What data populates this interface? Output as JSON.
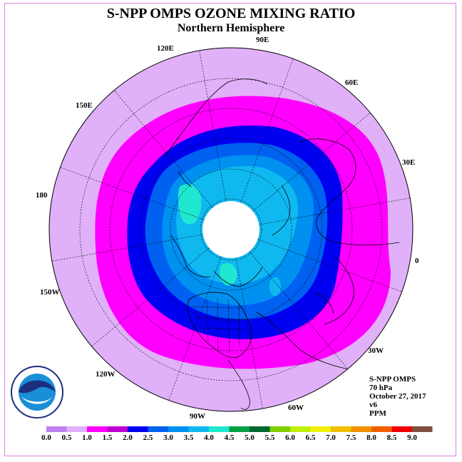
{
  "title": "S-NPP OMPS OZONE MIXING RATIO",
  "subtitle": "Northern Hemisphere",
  "longitude_labels": [
    "120E",
    "90E",
    "60E",
    "150E",
    "30E",
    "180",
    "0",
    "150W",
    "30W",
    "120W",
    "60W",
    "90W"
  ],
  "info": {
    "instrument": "S-NPP OMPS",
    "level": "70 hPa",
    "date": "October 27, 2017",
    "version": "v6",
    "unit": "PPM"
  },
  "colorbar": {
    "ticks": [
      "0.0",
      "0.5",
      "1.0",
      "1.5",
      "2.0",
      "2.5",
      "3.0",
      "3.5",
      "4.0",
      "4.5",
      "5.0",
      "5.5",
      "6.0",
      "6.5",
      "7.0",
      "7.5",
      "8.0",
      "8.5",
      "9.0"
    ],
    "colors": [
      "#c080f0",
      "#e0b0f8",
      "#ff00ff",
      "#c000d0",
      "#0000f0",
      "#0060f0",
      "#0090f0",
      "#10b8f0",
      "#20e8d0",
      "#00a040",
      "#006830",
      "#80d000",
      "#c0f000",
      "#f0f000",
      "#f0c000",
      "#f09000",
      "#f06000",
      "#f00000",
      "#805040"
    ]
  },
  "map_colors": {
    "outer": "#e0b0f8",
    "band_1_0": "#ff00ff",
    "band_1_5": "#0000f0",
    "band_2_0": "#0060f0",
    "band_2_5": "#0090f0",
    "band_3_0": "#10b8f0",
    "band_3_5": "#20e8d0",
    "polar_gap": "#ffffff"
  }
}
